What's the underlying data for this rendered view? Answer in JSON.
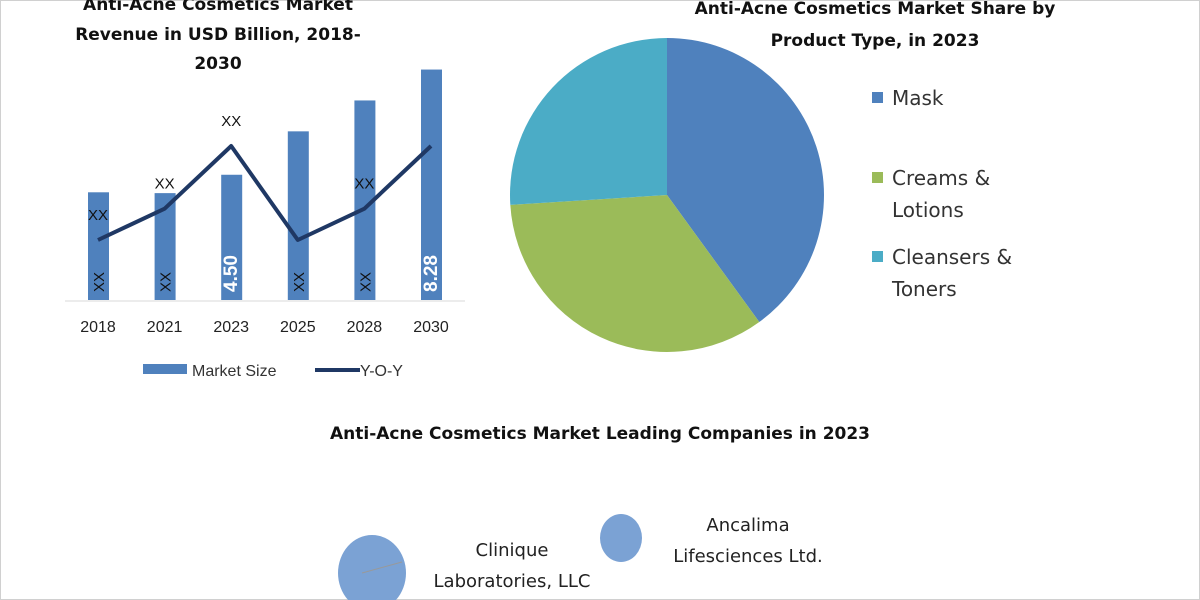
{
  "chart_data": [
    {
      "type": "bar",
      "title_lines": [
        "Anti-Acne Cosmetics Market",
        "Revenue in USD Billion, 2018-",
        "2030"
      ],
      "categories": [
        "2018",
        "2021",
        "2023",
        "2025",
        "2028",
        "2030"
      ],
      "series": [
        {
          "name": "Market Size",
          "values": [
            3.87,
            3.84,
            4.5,
            6.06,
            7.17,
            8.28
          ],
          "labels": [
            "XX",
            "XX",
            "4.50",
            "XX",
            "XX",
            "8.28"
          ],
          "color": "#4f81bd"
        },
        {
          "name": "Y-O-Y",
          "type": "line",
          "values": [
            1,
            2,
            4,
            1,
            2,
            4
          ],
          "labels": [
            "XX",
            "XX",
            "XX",
            "",
            "XX",
            ""
          ],
          "color": "#1f3864"
        }
      ],
      "ylim": [
        0,
        8.3
      ],
      "legend": "bottom"
    },
    {
      "type": "pie",
      "title_lines": [
        "Anti-Acne Cosmetics Market Share by",
        "Product Type, in 2023"
      ],
      "slices": [
        {
          "name": "Mask",
          "label_lines": [
            "Mask"
          ],
          "value": 40,
          "color": "#4f81bd"
        },
        {
          "name": "Creams & Lotions",
          "label_lines": [
            "Creams &",
            "Lotions"
          ],
          "value": 34,
          "color": "#9bbb59"
        },
        {
          "name": "Cleansers & Toners",
          "label_lines": [
            "Cleansers &",
            "Toners"
          ],
          "value": 26,
          "color": "#4bacc6"
        }
      ],
      "legend": "right"
    },
    {
      "type": "scatter",
      "title": "Anti-Acne Cosmetics Market Leading Companies in 2023",
      "bubbles": [
        {
          "name_lines": [
            "Clinique",
            "Laboratories, LLC"
          ],
          "size": 2.2
        },
        {
          "name_lines": [
            "Ancalima",
            "Lifesciences Ltd."
          ],
          "size": 1
        }
      ],
      "color": "#7ba2d4"
    }
  ]
}
